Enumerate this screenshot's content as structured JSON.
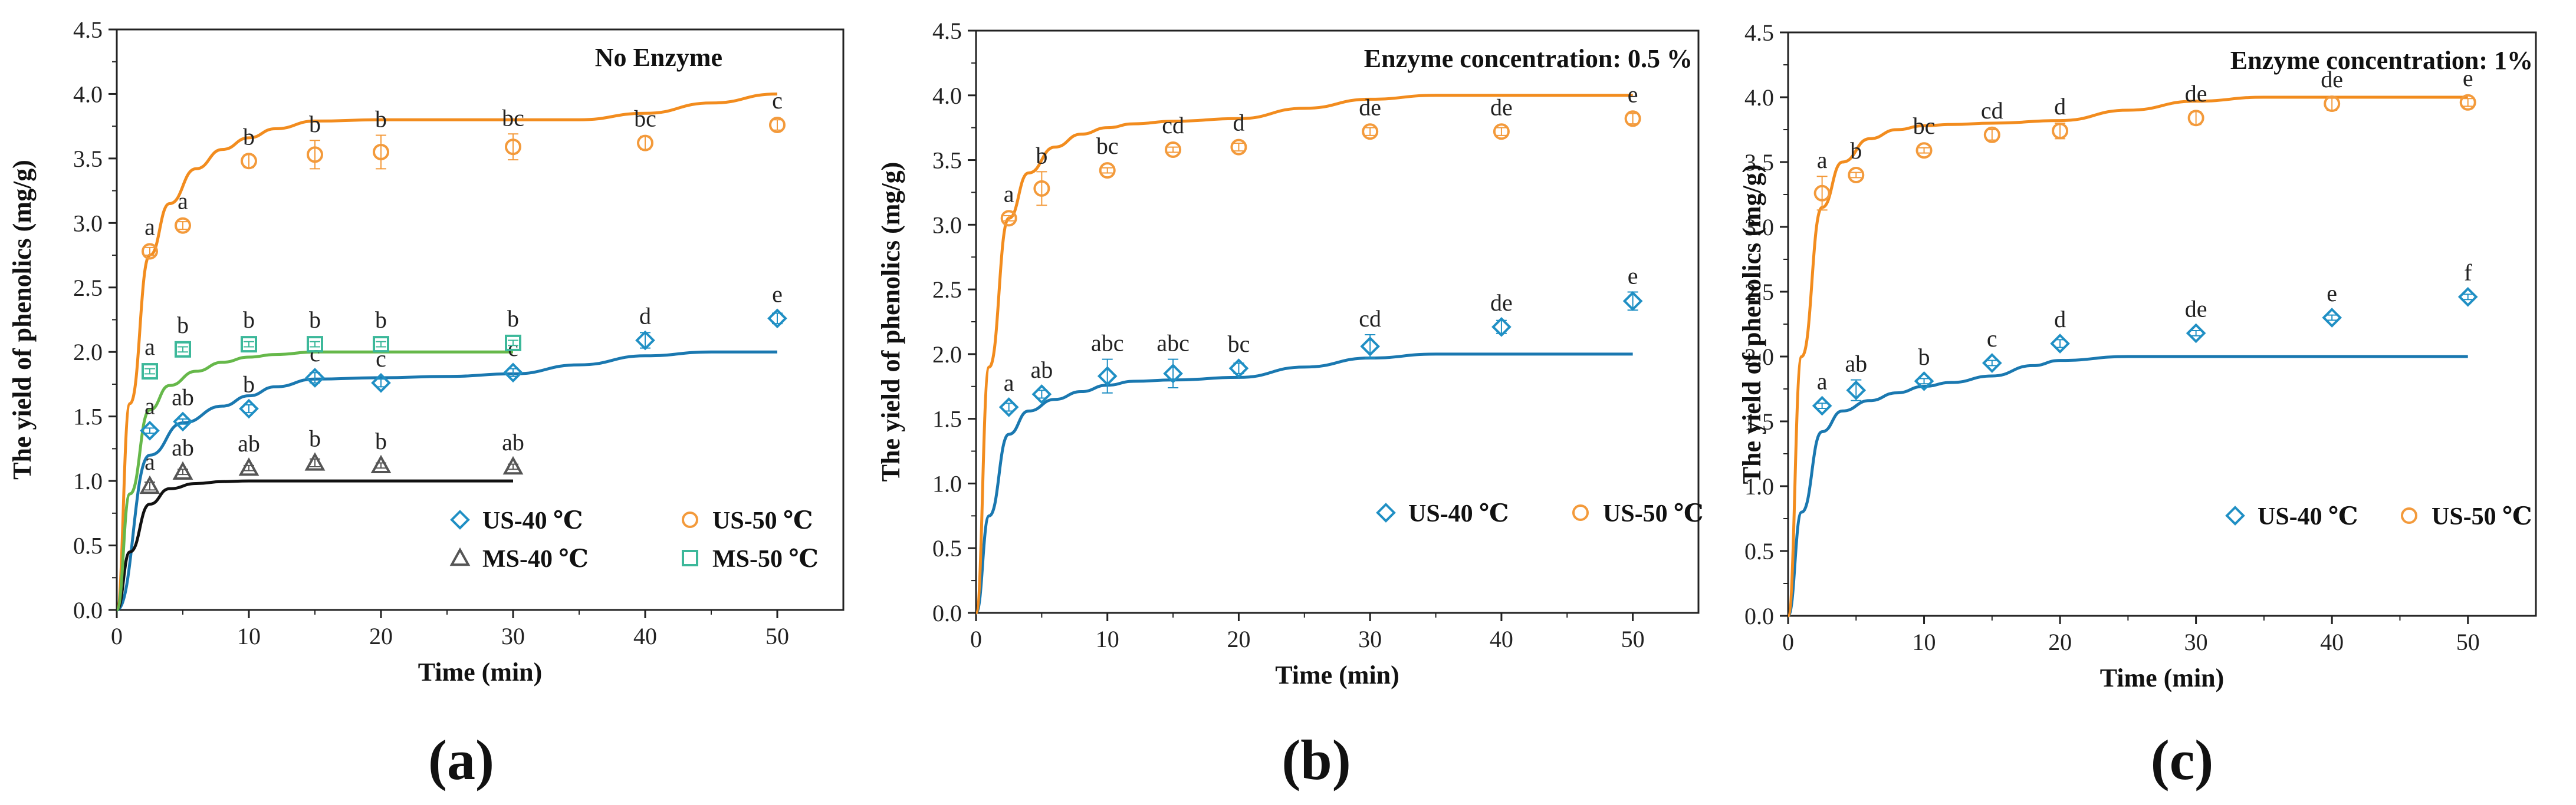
{
  "colors": {
    "us40": "#1f8fc4",
    "us50": "#f39a3b",
    "ms40": "#555555",
    "ms50": "#3cb89a",
    "fit_us40": "#1a78b0",
    "fit_us50": "#f28c1e",
    "fit_ms40": "#111111",
    "fit_ms50": "#66b84a"
  },
  "chart_data": [
    {
      "type": "scatter",
      "panel_label": "(a)",
      "title": "No Enzyme",
      "xlabel": "Time (min)",
      "ylabel": "The yield of phenolics (mg/g)",
      "xlim": [
        0,
        55
      ],
      "ylim": [
        0,
        4.5
      ],
      "xticks": [
        "0",
        "10",
        "20",
        "30",
        "40",
        "50"
      ],
      "yticks": [
        "0.0",
        "0.5",
        "1.0",
        "1.5",
        "2.0",
        "2.5",
        "3.0",
        "3.5",
        "4.0",
        "4.5"
      ],
      "legend_position": "bottom-right",
      "series": [
        {
          "name": "US-40 ℃",
          "key": "us40",
          "marker": "diamond",
          "x": [
            2.5,
            5,
            10,
            15,
            20,
            30,
            40,
            50
          ],
          "y": [
            1.39,
            1.46,
            1.56,
            1.8,
            1.76,
            1.84,
            2.09,
            2.26
          ],
          "err": [
            0.02,
            0.02,
            0.03,
            0.04,
            0.03,
            0.03,
            0.06,
            0.04
          ],
          "letters": [
            "a",
            "ab",
            "b",
            "c",
            "c",
            "c",
            "d",
            "e"
          ],
          "fit": {
            "x": [
              0,
              2.5,
              5,
              8,
              10,
              12,
              15,
              20,
              25,
              30,
              35,
              40,
              45,
              50
            ],
            "y": [
              0,
              1.2,
              1.45,
              1.58,
              1.66,
              1.73,
              1.79,
              1.8,
              1.81,
              1.83,
              1.9,
              1.97,
              2.0,
              2.0
            ]
          }
        },
        {
          "name": "US-50 ℃",
          "key": "us50",
          "marker": "circle",
          "x": [
            2.5,
            5,
            10,
            15,
            20,
            30,
            40,
            50
          ],
          "y": [
            2.78,
            2.98,
            3.48,
            3.53,
            3.55,
            3.59,
            3.62,
            3.76
          ],
          "err": [
            0.03,
            0.03,
            0.05,
            0.11,
            0.13,
            0.1,
            0.05,
            0.04
          ],
          "letters": [
            "a",
            "a",
            "b",
            "b",
            "b",
            "bc",
            "bc",
            "c"
          ],
          "fit": {
            "x": [
              0,
              1,
              2.5,
              4,
              6,
              8,
              10,
              12,
              15,
              20,
              30,
              35,
              40,
              45,
              50
            ],
            "y": [
              0,
              1.6,
              2.75,
              3.15,
              3.42,
              3.57,
              3.66,
              3.73,
              3.79,
              3.8,
              3.8,
              3.8,
              3.85,
              3.93,
              4.0
            ]
          }
        },
        {
          "name": "MS-40 ℃",
          "key": "ms40",
          "marker": "triangle",
          "x": [
            2.5,
            5,
            10,
            15,
            20,
            30
          ],
          "y": [
            0.96,
            1.07,
            1.1,
            1.14,
            1.12,
            1.11
          ],
          "err": [
            0.03,
            0.02,
            0.02,
            0.03,
            0.02,
            0.02
          ],
          "letters": [
            "a",
            "ab",
            "ab",
            "b",
            "b",
            "ab"
          ],
          "fit": {
            "x": [
              0,
              1,
              2.5,
              4,
              6,
              8,
              10,
              15,
              20,
              25,
              30
            ],
            "y": [
              0,
              0.45,
              0.82,
              0.94,
              0.98,
              0.995,
              1.0,
              1.0,
              1.0,
              1.0,
              1.0
            ]
          }
        },
        {
          "name": "MS-50 ℃",
          "key": "ms50",
          "marker": "square",
          "x": [
            2.5,
            5,
            10,
            15,
            20,
            30
          ],
          "y": [
            1.85,
            2.02,
            2.06,
            2.06,
            2.06,
            2.07
          ],
          "err": [
            0.02,
            0.02,
            0.02,
            0.02,
            0.02,
            0.02
          ],
          "letters": [
            "a",
            "b",
            "b",
            "b",
            "b",
            "b"
          ],
          "fit": {
            "x": [
              0,
              1,
              2.5,
              4,
              6,
              8,
              10,
              12,
              15,
              20,
              25,
              30
            ],
            "y": [
              0,
              0.9,
              1.55,
              1.74,
              1.85,
              1.92,
              1.96,
              1.98,
              2.0,
              2.0,
              2.0,
              2.0
            ]
          }
        }
      ]
    },
    {
      "type": "scatter",
      "panel_label": "(b)",
      "title": "Enzyme concentration: 0.5 %",
      "xlabel": "Time (min)",
      "ylabel": "The yield of phenolics (mg/g)",
      "xlim": [
        0,
        55
      ],
      "ylim": [
        0,
        4.5
      ],
      "xticks": [
        "0",
        "10",
        "20",
        "30",
        "40",
        "50"
      ],
      "yticks": [
        "0.0",
        "0.5",
        "1.0",
        "1.5",
        "2.0",
        "2.5",
        "3.0",
        "3.5",
        "4.0",
        "4.5"
      ],
      "legend_position": "bottom-right",
      "series": [
        {
          "name": "US-40 ℃",
          "key": "us40",
          "marker": "diamond",
          "x": [
            2.5,
            5,
            10,
            15,
            20,
            30,
            40,
            50
          ],
          "y": [
            1.59,
            1.69,
            1.83,
            1.85,
            1.89,
            2.06,
            2.21,
            2.41
          ],
          "err": [
            0.03,
            0.03,
            0.13,
            0.11,
            0.04,
            0.09,
            0.05,
            0.07
          ],
          "letters": [
            "a",
            "ab",
            "abc",
            "abc",
            "bc",
            "cd",
            "de",
            "e"
          ],
          "fit": {
            "x": [
              0,
              1,
              2.5,
              4,
              6,
              8,
              10,
              12,
              15,
              20,
              25,
              30,
              35,
              40,
              45,
              50
            ],
            "y": [
              0,
              0.75,
              1.38,
              1.56,
              1.65,
              1.71,
              1.76,
              1.79,
              1.8,
              1.82,
              1.9,
              1.97,
              2.0,
              2.0,
              2.0,
              2.0
            ]
          }
        },
        {
          "name": "US-50 ℃",
          "key": "us50",
          "marker": "circle",
          "x": [
            2.5,
            5,
            10,
            15,
            20,
            30,
            40,
            50
          ],
          "y": [
            3.05,
            3.28,
            3.42,
            3.58,
            3.6,
            3.72,
            3.72,
            3.82
          ],
          "err": [
            0.02,
            0.13,
            0.02,
            0.02,
            0.03,
            0.03,
            0.03,
            0.04
          ],
          "letters": [
            "a",
            "b",
            "bc",
            "cd",
            "d",
            "de",
            "de",
            "e"
          ],
          "fit": {
            "x": [
              0,
              1,
              2.5,
              4,
              6,
              8,
              10,
              12,
              15,
              20,
              25,
              30,
              35,
              40,
              45,
              50
            ],
            "y": [
              0,
              1.9,
              3.05,
              3.4,
              3.6,
              3.7,
              3.75,
              3.78,
              3.8,
              3.82,
              3.9,
              3.97,
              4.0,
              4.0,
              4.0,
              4.0
            ]
          }
        }
      ]
    },
    {
      "type": "scatter",
      "panel_label": "(c)",
      "title": "Enzyme concentration: 1%",
      "xlabel": "Time (min)",
      "ylabel": "The yield of phenolics (mg/g)",
      "xlim": [
        0,
        55
      ],
      "ylim": [
        0,
        4.5
      ],
      "xticks": [
        "0",
        "10",
        "20",
        "30",
        "40",
        "50"
      ],
      "yticks": [
        "0.0",
        "0.5",
        "1.0",
        "1.5",
        "2.0",
        "2.5",
        "3.0",
        "3.5",
        "4.0",
        "4.5"
      ],
      "legend_position": "bottom-right",
      "series": [
        {
          "name": "US-40 ℃",
          "key": "us40",
          "marker": "diamond",
          "x": [
            2.5,
            5,
            10,
            15,
            20,
            30,
            40,
            50
          ],
          "y": [
            1.62,
            1.74,
            1.81,
            1.95,
            2.1,
            2.18,
            2.3,
            2.46
          ],
          "err": [
            0.02,
            0.08,
            0.02,
            0.02,
            0.03,
            0.02,
            0.02,
            0.02
          ],
          "letters": [
            "a",
            "ab",
            "b",
            "c",
            "d",
            "de",
            "e",
            "f"
          ],
          "fit": {
            "x": [
              0,
              1,
              2.5,
              4,
              6,
              8,
              10,
              12,
              15,
              18,
              20,
              25,
              30,
              40,
              50
            ],
            "y": [
              0,
              0.8,
              1.42,
              1.58,
              1.66,
              1.72,
              1.77,
              1.8,
              1.85,
              1.93,
              1.97,
              2.0,
              2.0,
              2.0,
              2.0
            ]
          }
        },
        {
          "name": "US-50 ℃",
          "key": "us50",
          "marker": "circle",
          "x": [
            2.5,
            5,
            10,
            15,
            20,
            30,
            40,
            50
          ],
          "y": [
            3.26,
            3.4,
            3.59,
            3.71,
            3.74,
            3.84,
            3.95,
            3.96
          ],
          "err": [
            0.13,
            0.02,
            0.02,
            0.04,
            0.06,
            0.05,
            0.05,
            0.03
          ],
          "letters": [
            "a",
            "b",
            "bc",
            "cd",
            "d",
            "de",
            "de",
            "e"
          ],
          "fit": {
            "x": [
              0,
              1,
              2.5,
              4,
              6,
              8,
              10,
              12,
              15,
              20,
              25,
              30,
              35,
              40,
              45,
              50
            ],
            "y": [
              0,
              2.0,
              3.15,
              3.5,
              3.68,
              3.75,
              3.78,
              3.79,
              3.8,
              3.82,
              3.9,
              3.97,
              4.0,
              4.0,
              4.0,
              4.0
            ]
          }
        }
      ]
    }
  ]
}
